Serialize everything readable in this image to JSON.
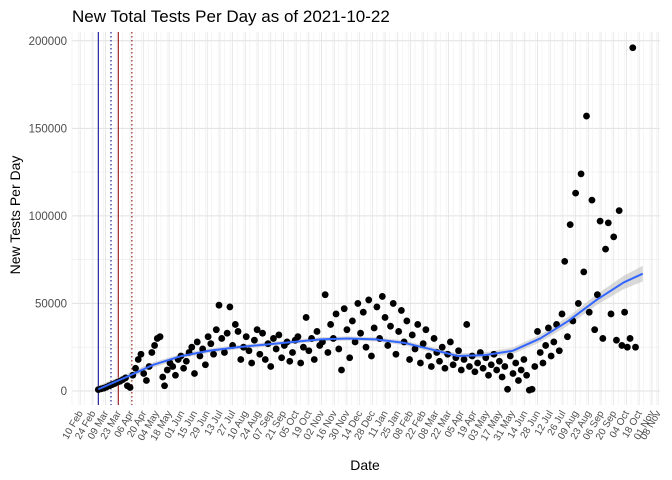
{
  "chart_data": {
    "type": "scatter",
    "title": "New Total Tests Per Day as of 2021-10-22",
    "xlabel": "Date",
    "ylabel": "New Tests Per Day",
    "xlim": [
      "2020-02-01",
      "2021-11-10"
    ],
    "ylim": [
      -8000,
      205000
    ],
    "grid": true,
    "legend": "none",
    "y_ticks": [
      {
        "value": 0,
        "label": "0"
      },
      {
        "value": 50000,
        "label": "50000"
      },
      {
        "value": 100000,
        "label": "100000"
      },
      {
        "value": 150000,
        "label": "150000"
      },
      {
        "value": 200000,
        "label": "200000"
      }
    ],
    "x_tick_labels": [
      "10 Feb",
      "24 Feb",
      "09 Mar",
      "23 Mar",
      "06 Apr",
      "20 Apr",
      "04 May",
      "18 May",
      "01 Jun",
      "15 Jun",
      "29 Jun",
      "13 Jul",
      "27 Jul",
      "10 Aug",
      "24 Aug",
      "07 Sep",
      "21 Sep",
      "05 Oct",
      "19 Oct",
      "02 Nov",
      "16 Nov",
      "30 Nov",
      "14 Dec",
      "28 Dec",
      "11 Jan",
      "25 Jan",
      "08 Feb",
      "22 Feb",
      "08 Mar",
      "22 Mar",
      "05 Apr",
      "19 Apr",
      "03 May",
      "17 May",
      "31 May",
      "14 Jun",
      "28 Jun",
      "12 Jul",
      "26 Jul",
      "09 Aug",
      "23 Aug",
      "06 Sep",
      "20 Sep",
      "04 Oct",
      "18 Oct",
      "01 Nov",
      "08 Nov"
    ],
    "x_tick_dates": [
      "2020-02-10",
      "2020-02-24",
      "2020-03-09",
      "2020-03-23",
      "2020-04-06",
      "2020-04-20",
      "2020-05-04",
      "2020-05-18",
      "2020-06-01",
      "2020-06-15",
      "2020-06-29",
      "2020-07-13",
      "2020-07-27",
      "2020-08-10",
      "2020-08-24",
      "2020-09-07",
      "2020-09-21",
      "2020-10-05",
      "2020-10-19",
      "2020-11-02",
      "2020-11-16",
      "2020-11-30",
      "2020-12-14",
      "2020-12-28",
      "2021-01-11",
      "2021-01-25",
      "2021-02-08",
      "2021-02-22",
      "2021-03-08",
      "2021-03-22",
      "2021-04-05",
      "2021-04-19",
      "2021-05-03",
      "2021-05-17",
      "2021-05-31",
      "2021-06-14",
      "2021-06-28",
      "2021-07-12",
      "2021-07-26",
      "2021-08-09",
      "2021-08-23",
      "2021-09-06",
      "2021-09-20",
      "2021-10-04",
      "2021-10-18",
      "2021-11-01",
      "2021-11-08"
    ],
    "vlines": [
      {
        "date": "2020-03-01",
        "color": "#00008b",
        "style": "solid"
      },
      {
        "date": "2020-03-15",
        "color": "#00008b",
        "style": "dotted"
      },
      {
        "date": "2020-03-23",
        "color": "#8b0000",
        "style": "solid"
      },
      {
        "date": "2020-04-07",
        "color": "#8b0000",
        "style": "dotted"
      }
    ],
    "series": [
      {
        "type": "scatter",
        "color": "#000000",
        "points": [
          [
            "2020-03-01",
            800
          ],
          [
            "2020-03-04",
            1200
          ],
          [
            "2020-03-07",
            1600
          ],
          [
            "2020-03-10",
            2200
          ],
          [
            "2020-03-13",
            3000
          ],
          [
            "2020-03-16",
            3600
          ],
          [
            "2020-03-19",
            4200
          ],
          [
            "2020-03-22",
            5000
          ],
          [
            "2020-03-25",
            5600
          ],
          [
            "2020-03-28",
            6500
          ],
          [
            "2020-03-31",
            7500
          ],
          [
            "2020-04-02",
            3000
          ],
          [
            "2020-04-05",
            2000
          ],
          [
            "2020-04-08",
            9000
          ],
          [
            "2020-04-11",
            13000
          ],
          [
            "2020-04-14",
            18000
          ],
          [
            "2020-04-17",
            21000
          ],
          [
            "2020-04-20",
            10000
          ],
          [
            "2020-04-23",
            6000
          ],
          [
            "2020-04-26",
            14000
          ],
          [
            "2020-04-29",
            22000
          ],
          [
            "2020-05-02",
            26000
          ],
          [
            "2020-05-05",
            30000
          ],
          [
            "2020-05-08",
            31000
          ],
          [
            "2020-05-11",
            8000
          ],
          [
            "2020-05-13",
            3000
          ],
          [
            "2020-05-16",
            12000
          ],
          [
            "2020-05-19",
            16000
          ],
          [
            "2020-05-22",
            14000
          ],
          [
            "2020-05-25",
            9000
          ],
          [
            "2020-05-28",
            18000
          ],
          [
            "2020-05-31",
            20000
          ],
          [
            "2020-06-03",
            13000
          ],
          [
            "2020-06-06",
            17000
          ],
          [
            "2020-06-09",
            22000
          ],
          [
            "2020-06-12",
            25000
          ],
          [
            "2020-06-15",
            10000
          ],
          [
            "2020-06-18",
            28000
          ],
          [
            "2020-06-21",
            20000
          ],
          [
            "2020-06-24",
            24000
          ],
          [
            "2020-06-27",
            15000
          ],
          [
            "2020-06-30",
            31000
          ],
          [
            "2020-07-03",
            27000
          ],
          [
            "2020-07-06",
            21000
          ],
          [
            "2020-07-09",
            35000
          ],
          [
            "2020-07-12",
            49000
          ],
          [
            "2020-07-15",
            30000
          ],
          [
            "2020-07-18",
            22000
          ],
          [
            "2020-07-21",
            33000
          ],
          [
            "2020-07-24",
            48000
          ],
          [
            "2020-07-27",
            26000
          ],
          [
            "2020-07-30",
            38000
          ],
          [
            "2020-08-02",
            34000
          ],
          [
            "2020-08-05",
            18000
          ],
          [
            "2020-08-08",
            25000
          ],
          [
            "2020-08-11",
            31000
          ],
          [
            "2020-08-14",
            23000
          ],
          [
            "2020-08-17",
            16000
          ],
          [
            "2020-08-20",
            29000
          ],
          [
            "2020-08-23",
            35000
          ],
          [
            "2020-08-26",
            21000
          ],
          [
            "2020-08-29",
            33000
          ],
          [
            "2020-09-01",
            18000
          ],
          [
            "2020-09-04",
            27000
          ],
          [
            "2020-09-07",
            14000
          ],
          [
            "2020-09-10",
            30000
          ],
          [
            "2020-09-13",
            24000
          ],
          [
            "2020-09-16",
            32000
          ],
          [
            "2020-09-19",
            19000
          ],
          [
            "2020-09-22",
            26000
          ],
          [
            "2020-09-25",
            28000
          ],
          [
            "2020-09-28",
            17000
          ],
          [
            "2020-10-01",
            22000
          ],
          [
            "2020-10-04",
            29000
          ],
          [
            "2020-10-07",
            31000
          ],
          [
            "2020-10-10",
            16000
          ],
          [
            "2020-10-13",
            25000
          ],
          [
            "2020-10-16",
            42000
          ],
          [
            "2020-10-19",
            23000
          ],
          [
            "2020-10-22",
            30000
          ],
          [
            "2020-10-25",
            18000
          ],
          [
            "2020-10-28",
            34000
          ],
          [
            "2020-10-31",
            26000
          ],
          [
            "2020-11-03",
            28000
          ],
          [
            "2020-11-06",
            55000
          ],
          [
            "2020-11-09",
            22000
          ],
          [
            "2020-11-12",
            38000
          ],
          [
            "2020-11-15",
            30000
          ],
          [
            "2020-11-18",
            44000
          ],
          [
            "2020-11-21",
            24000
          ],
          [
            "2020-11-24",
            12000
          ],
          [
            "2020-11-27",
            47000
          ],
          [
            "2020-11-30",
            35000
          ],
          [
            "2020-12-03",
            19000
          ],
          [
            "2020-12-06",
            40000
          ],
          [
            "2020-12-09",
            28000
          ],
          [
            "2020-12-12",
            50000
          ],
          [
            "2020-12-15",
            33000
          ],
          [
            "2020-12-18",
            45000
          ],
          [
            "2020-12-21",
            25000
          ],
          [
            "2020-12-24",
            52000
          ],
          [
            "2020-12-27",
            20000
          ],
          [
            "2020-12-30",
            36000
          ],
          [
            "2021-01-02",
            48000
          ],
          [
            "2021-01-05",
            30000
          ],
          [
            "2021-01-08",
            54000
          ],
          [
            "2021-01-11",
            42000
          ],
          [
            "2021-01-14",
            26000
          ],
          [
            "2021-01-17",
            37000
          ],
          [
            "2021-01-20",
            50000
          ],
          [
            "2021-01-23",
            21000
          ],
          [
            "2021-01-26",
            34000
          ],
          [
            "2021-01-29",
            46000
          ],
          [
            "2021-02-01",
            28000
          ],
          [
            "2021-02-04",
            40000
          ],
          [
            "2021-02-07",
            18000
          ],
          [
            "2021-02-10",
            32000
          ],
          [
            "2021-02-13",
            24000
          ],
          [
            "2021-02-16",
            38000
          ],
          [
            "2021-02-19",
            16000
          ],
          [
            "2021-02-22",
            27000
          ],
          [
            "2021-02-25",
            35000
          ],
          [
            "2021-02-28",
            20000
          ],
          [
            "2021-03-03",
            14000
          ],
          [
            "2021-03-06",
            30000
          ],
          [
            "2021-03-09",
            22000
          ],
          [
            "2021-03-12",
            17000
          ],
          [
            "2021-03-15",
            25000
          ],
          [
            "2021-03-18",
            13000
          ],
          [
            "2021-03-21",
            21000
          ],
          [
            "2021-03-24",
            28000
          ],
          [
            "2021-03-27",
            15000
          ],
          [
            "2021-03-30",
            19000
          ],
          [
            "2021-04-02",
            23000
          ],
          [
            "2021-04-05",
            12000
          ],
          [
            "2021-04-08",
            18000
          ],
          [
            "2021-04-11",
            38000
          ],
          [
            "2021-04-14",
            14000
          ],
          [
            "2021-04-17",
            20000
          ],
          [
            "2021-04-20",
            11000
          ],
          [
            "2021-04-23",
            16000
          ],
          [
            "2021-04-26",
            22000
          ],
          [
            "2021-04-29",
            13000
          ],
          [
            "2021-05-02",
            19000
          ],
          [
            "2021-05-05",
            9000
          ],
          [
            "2021-05-08",
            15000
          ],
          [
            "2021-05-11",
            21000
          ],
          [
            "2021-05-14",
            12000
          ],
          [
            "2021-05-17",
            17000
          ],
          [
            "2021-05-20",
            8000
          ],
          [
            "2021-05-23",
            14000
          ],
          [
            "2021-05-26",
            1000
          ],
          [
            "2021-05-29",
            20000
          ],
          [
            "2021-06-01",
            10000
          ],
          [
            "2021-06-04",
            16000
          ],
          [
            "2021-06-07",
            6000
          ],
          [
            "2021-06-10",
            12000
          ],
          [
            "2021-06-13",
            18000
          ],
          [
            "2021-06-16",
            9000
          ],
          [
            "2021-06-19",
            500
          ],
          [
            "2021-06-22",
            1000
          ],
          [
            "2021-06-25",
            14000
          ],
          [
            "2021-06-28",
            34000
          ],
          [
            "2021-07-01",
            22000
          ],
          [
            "2021-07-04",
            16000
          ],
          [
            "2021-07-07",
            26000
          ],
          [
            "2021-07-10",
            36000
          ],
          [
            "2021-07-13",
            20000
          ],
          [
            "2021-07-16",
            28000
          ],
          [
            "2021-07-19",
            38000
          ],
          [
            "2021-07-22",
            23000
          ],
          [
            "2021-07-25",
            44000
          ],
          [
            "2021-07-28",
            74000
          ],
          [
            "2021-07-31",
            31000
          ],
          [
            "2021-08-03",
            95000
          ],
          [
            "2021-08-06",
            40000
          ],
          [
            "2021-08-09",
            113000
          ],
          [
            "2021-08-12",
            50000
          ],
          [
            "2021-08-15",
            124000
          ],
          [
            "2021-08-18",
            68000
          ],
          [
            "2021-08-21",
            157000
          ],
          [
            "2021-08-24",
            45000
          ],
          [
            "2021-08-27",
            109000
          ],
          [
            "2021-08-30",
            35000
          ],
          [
            "2021-09-02",
            55000
          ],
          [
            "2021-09-05",
            97000
          ],
          [
            "2021-09-08",
            30000
          ],
          [
            "2021-09-11",
            81000
          ],
          [
            "2021-09-14",
            96000
          ],
          [
            "2021-09-17",
            44000
          ],
          [
            "2021-09-20",
            88000
          ],
          [
            "2021-09-23",
            29000
          ],
          [
            "2021-09-26",
            103000
          ],
          [
            "2021-09-29",
            26000
          ],
          [
            "2021-10-02",
            45000
          ],
          [
            "2021-10-05",
            25000
          ],
          [
            "2021-10-08",
            30000
          ],
          [
            "2021-10-11",
            196000
          ],
          [
            "2021-10-14",
            25000
          ]
        ]
      },
      {
        "type": "smooth",
        "color": "#3366ff",
        "band_color": "#bfbfbf",
        "points": [
          [
            "2020-03-01",
            1000,
            2000
          ],
          [
            "2020-04-01",
            8000,
            1800
          ],
          [
            "2020-05-01",
            15000,
            1500
          ],
          [
            "2020-06-01",
            20000,
            1300
          ],
          [
            "2020-07-01",
            23000,
            1200
          ],
          [
            "2020-08-01",
            25000,
            1200
          ],
          [
            "2020-09-01",
            26500,
            1200
          ],
          [
            "2020-10-01",
            28000,
            1200
          ],
          [
            "2020-11-01",
            29500,
            1200
          ],
          [
            "2020-12-01",
            30000,
            1200
          ],
          [
            "2021-01-01",
            29500,
            1200
          ],
          [
            "2021-02-01",
            27500,
            1300
          ],
          [
            "2021-03-01",
            24000,
            1400
          ],
          [
            "2021-04-01",
            20000,
            1500
          ],
          [
            "2021-05-01",
            20500,
            1600
          ],
          [
            "2021-06-01",
            23000,
            1800
          ],
          [
            "2021-07-01",
            30000,
            2100
          ],
          [
            "2021-08-01",
            40000,
            2500
          ],
          [
            "2021-09-01",
            52000,
            3000
          ],
          [
            "2021-10-01",
            62000,
            3800
          ],
          [
            "2021-10-22",
            67000,
            4500
          ]
        ]
      }
    ]
  }
}
